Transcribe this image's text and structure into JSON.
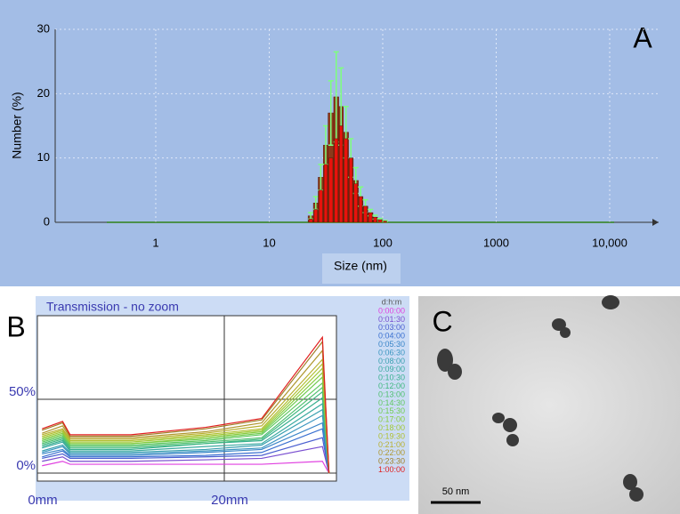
{
  "chart_data": [
    {
      "type": "histogram",
      "panel_label": "A",
      "xlabel": "Size (nm)",
      "ylabel": "Number (%)",
      "xlog": true,
      "xlim": [
        0.13,
        27000
      ],
      "xticks": [
        1,
        10,
        100,
        1000,
        {
          "value": 10000,
          "label": "10,000"
        }
      ],
      "ylim": [
        0,
        30
      ],
      "yticks": [
        0,
        10,
        20,
        30
      ],
      "grid": true,
      "bins": [
        22,
        24.5,
        27,
        30,
        33,
        37,
        41,
        45,
        50,
        55,
        61,
        67,
        74,
        82,
        90,
        100,
        110
      ],
      "error_color": "#7dff7d",
      "series": [
        {
          "color": "#8b3a1a",
          "values": [
            1,
            3,
            7,
            12,
            17,
            19.5,
            18,
            14,
            10,
            6.5,
            4,
            2.5,
            1.5,
            0.8,
            0.4,
            0.2
          ],
          "errors": [
            0.5,
            1,
            2,
            3,
            5,
            7,
            6,
            4,
            3,
            2,
            1.5,
            1,
            0.5,
            0.3,
            0.2,
            0.1
          ]
        },
        {
          "color": "#e8120c",
          "values": [
            0.5,
            2,
            5,
            9,
            10,
            13,
            15,
            13,
            10,
            6,
            4,
            2.5,
            1.5,
            0.8,
            0.4,
            0.2
          ]
        }
      ]
    },
    {
      "type": "line",
      "panel_label": "B",
      "title": "Transmission - no zoom",
      "legend_title": "d:h:m",
      "x": [
        0.5,
        2.7,
        3.5,
        10,
        18,
        24,
        30.5,
        31.2
      ],
      "xlim": [
        0,
        32
      ],
      "xticks": [
        {
          "value": 0,
          "label": "0mm"
        },
        {
          "value": 20,
          "label": "20mm"
        }
      ],
      "ylim": [
        -5.4,
        106.6
      ],
      "yticks": [
        {
          "value": 0,
          "label": "0%"
        },
        {
          "value": 50,
          "label": "50%"
        }
      ],
      "grid": true,
      "series": [
        {
          "name": "0:00:00",
          "color": "#e040e0",
          "values": [
            5,
            8,
            6,
            6,
            6,
            6,
            8,
            0
          ]
        },
        {
          "name": "0:01:30",
          "color": "#7a4fd0",
          "values": [
            8,
            11,
            8,
            8,
            9,
            10,
            18,
            0
          ]
        },
        {
          "name": "0:03:00",
          "color": "#4a5fd0",
          "values": [
            10,
            13,
            10,
            10,
            11,
            12,
            24,
            0
          ]
        },
        {
          "name": "0:04:00",
          "color": "#3a70d0",
          "values": [
            11,
            15,
            11,
            11,
            12,
            14,
            30,
            0
          ]
        },
        {
          "name": "0:05:30",
          "color": "#3a85c8",
          "values": [
            13,
            16,
            12,
            12,
            14,
            16,
            34,
            0
          ]
        },
        {
          "name": "0:06:30",
          "color": "#3a95c0",
          "values": [
            14,
            18,
            13,
            13,
            15,
            17,
            39,
            0
          ]
        },
        {
          "name": "0:08:00",
          "color": "#3aa0b0",
          "values": [
            15,
            19,
            14,
            14,
            16,
            19,
            43,
            0
          ]
        },
        {
          "name": "0:09:00",
          "color": "#3aaaa0",
          "values": [
            17,
            21,
            15,
            15,
            18,
            20,
            47,
            0
          ]
        },
        {
          "name": "0:10:30",
          "color": "#3ab090",
          "values": [
            18,
            22,
            16,
            16,
            20,
            22,
            51,
            0
          ]
        },
        {
          "name": "0:12:00",
          "color": "#40b880",
          "values": [
            19,
            23,
            17,
            17,
            20,
            23,
            55,
            0
          ]
        },
        {
          "name": "0:13:00",
          "color": "#50c070",
          "values": [
            20,
            24,
            18,
            18,
            21,
            24,
            58,
            0
          ]
        },
        {
          "name": "0:14:30",
          "color": "#60c860",
          "values": [
            21,
            25,
            19,
            19,
            22,
            26,
            61,
            0
          ]
        },
        {
          "name": "0:15:30",
          "color": "#70cc50",
          "values": [
            22,
            26,
            20,
            20,
            23,
            27,
            65,
            0
          ]
        },
        {
          "name": "0:17:00",
          "color": "#88cc40",
          "values": [
            23,
            27,
            20,
            20,
            24,
            28,
            68,
            0
          ]
        },
        {
          "name": "0:18:00",
          "color": "#a0c838",
          "values": [
            24,
            28,
            21,
            21,
            25,
            29,
            71,
            0
          ]
        },
        {
          "name": "0:19:30",
          "color": "#b0c030",
          "values": [
            25,
            29,
            22,
            22,
            26,
            30,
            74,
            0
          ]
        },
        {
          "name": "0:21:00",
          "color": "#b8b030",
          "values": [
            26,
            30,
            23,
            23,
            27,
            32,
            77,
            0
          ]
        },
        {
          "name": "0:22:00",
          "color": "#b09830",
          "values": [
            27,
            32,
            24,
            24,
            28,
            34,
            83,
            0
          ]
        },
        {
          "name": "0:23:30",
          "color": "#a08028",
          "values": [
            29,
            34,
            25,
            25,
            30,
            36,
            89,
            0
          ]
        },
        {
          "name": "1:00:00",
          "color": "#e02020",
          "values": [
            30,
            35,
            26,
            26,
            31,
            37,
            92,
            0
          ]
        }
      ]
    }
  ],
  "image": {
    "label": "C",
    "scale_bar": "50 nm"
  }
}
